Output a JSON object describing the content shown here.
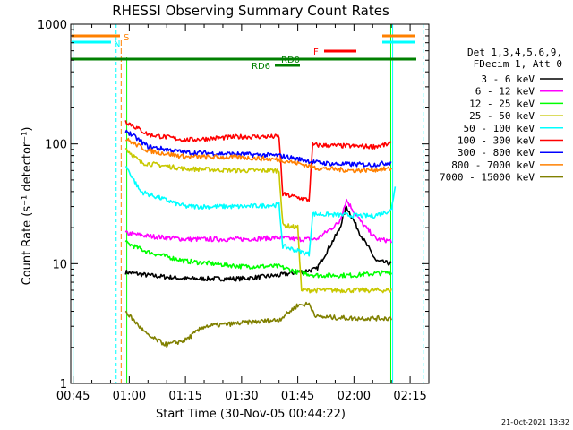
{
  "chart_data": {
    "type": "line",
    "title": "RHESSI Observing Summary Count Rates",
    "xlabel": "Start Time (30-Nov-05 00:44:22)",
    "ylabel": "Count Rate (s⁻¹ detector⁻¹)",
    "yscale": "log",
    "ylim": [
      1,
      1000
    ],
    "xlim": [
      "00:44:22",
      "02:20:00"
    ],
    "x_ticks": [
      "00:45",
      "01:00",
      "01:15",
      "01:30",
      "01:45",
      "02:00",
      "02:15"
    ],
    "y_ticks": [
      "1",
      "10",
      "100",
      "1000"
    ],
    "grid": false,
    "legend_position": "right",
    "legend_header": [
      "Det 1,3,4,5,6,9,",
      "FDecim 1, Att 0"
    ],
    "series": [
      {
        "name": "3 - 6 keV",
        "color": "#000000",
        "points": [
          [
            "00:59",
            8.5
          ],
          [
            "01:05",
            8.0
          ],
          [
            "01:15",
            7.5
          ],
          [
            "01:30",
            7.5
          ],
          [
            "01:40",
            8.0
          ],
          [
            "01:45",
            8.5
          ],
          [
            "01:50",
            9.0
          ],
          [
            "01:56",
            19.0
          ],
          [
            "01:58",
            30.0
          ],
          [
            "02:02",
            17.0
          ],
          [
            "02:06",
            10.5
          ],
          [
            "02:10",
            10.0
          ]
        ]
      },
      {
        "name": "6 - 12 keV",
        "color": "#ff00ff",
        "points": [
          [
            "00:59",
            18.0
          ],
          [
            "01:05",
            17.0
          ],
          [
            "01:15",
            16.0
          ],
          [
            "01:30",
            16.0
          ],
          [
            "01:40",
            16.5
          ],
          [
            "01:45",
            16.0
          ],
          [
            "01:50",
            16.0
          ],
          [
            "01:56",
            22.0
          ],
          [
            "01:58",
            34.0
          ],
          [
            "02:02",
            22.0
          ],
          [
            "02:06",
            16.0
          ],
          [
            "02:10",
            15.5
          ]
        ]
      },
      {
        "name": "12 - 25 keV",
        "color": "#00ff00",
        "points": [
          [
            "00:59",
            15.0
          ],
          [
            "01:05",
            12.5
          ],
          [
            "01:15",
            10.5
          ],
          [
            "01:30",
            9.5
          ],
          [
            "01:40",
            9.5
          ],
          [
            "01:45",
            8.5
          ],
          [
            "01:50",
            8.0
          ],
          [
            "02:00",
            8.0
          ],
          [
            "02:10",
            8.5
          ]
        ]
      },
      {
        "name": "25 - 50 keV",
        "color": "#c8c800",
        "points": [
          [
            "00:59",
            92.0
          ],
          [
            "01:03",
            70.0
          ],
          [
            "01:15",
            62.0
          ],
          [
            "01:30",
            60.0
          ],
          [
            "01:40",
            60.0
          ],
          [
            "01:41",
            21.0
          ],
          [
            "01:45",
            20.0
          ],
          [
            "01:46",
            6.0
          ],
          [
            "02:10",
            6.0
          ]
        ]
      },
      {
        "name": "50 - 100 keV",
        "color": "#00ffff",
        "points": [
          [
            "00:59",
            66.0
          ],
          [
            "01:03",
            40.0
          ],
          [
            "01:15",
            30.0
          ],
          [
            "01:30",
            30.0
          ],
          [
            "01:40",
            31.0
          ],
          [
            "01:41",
            14.0
          ],
          [
            "01:48",
            12.0
          ],
          [
            "01:49",
            26.0
          ],
          [
            "02:05",
            25.0
          ],
          [
            "02:10",
            28.0
          ],
          [
            "02:11",
            45.0
          ]
        ]
      },
      {
        "name": "100 - 300 keV",
        "color": "#ff0000",
        "points": [
          [
            "00:59",
            155.0
          ],
          [
            "01:05",
            120.0
          ],
          [
            "01:15",
            108.0
          ],
          [
            "01:30",
            115.0
          ],
          [
            "01:40",
            115.0
          ],
          [
            "01:41",
            38.0
          ],
          [
            "01:48",
            34.0
          ],
          [
            "01:49",
            98.0
          ],
          [
            "02:05",
            95.0
          ],
          [
            "02:10",
            100.0
          ]
        ]
      },
      {
        "name": "300 - 800 keV",
        "color": "#0000ff",
        "points": [
          [
            "00:59",
            130.0
          ],
          [
            "01:05",
            95.0
          ],
          [
            "01:15",
            85.0
          ],
          [
            "01:30",
            82.0
          ],
          [
            "01:40",
            80.0
          ],
          [
            "01:45",
            75.0
          ],
          [
            "01:50",
            70.0
          ],
          [
            "01:55",
            68.0
          ],
          [
            "02:05",
            67.0
          ],
          [
            "02:10",
            70.0
          ]
        ]
      },
      {
        "name": "800 - 7000 keV",
        "color": "#ff8000",
        "points": [
          [
            "00:59",
            110.0
          ],
          [
            "01:05",
            88.0
          ],
          [
            "01:15",
            78.0
          ],
          [
            "01:30",
            77.0
          ],
          [
            "01:40",
            74.0
          ],
          [
            "01:45",
            69.0
          ],
          [
            "01:50",
            63.0
          ],
          [
            "02:00",
            60.0
          ],
          [
            "02:10",
            62.0
          ]
        ]
      },
      {
        "name": "7000 - 15000 keV",
        "color": "#808000",
        "points": [
          [
            "00:59",
            4.0
          ],
          [
            "01:05",
            2.5
          ],
          [
            "01:10",
            2.1
          ],
          [
            "01:15",
            2.3
          ],
          [
            "01:20",
            3.0
          ],
          [
            "01:30",
            3.2
          ],
          [
            "01:40",
            3.4
          ],
          [
            "01:45",
            4.5
          ],
          [
            "01:48",
            4.6
          ],
          [
            "01:50",
            3.6
          ],
          [
            "02:00",
            3.5
          ],
          [
            "02:10",
            3.5
          ]
        ]
      }
    ],
    "annotations": {
      "S": {
        "label": "S",
        "color": "#ff8000"
      },
      "N": {
        "label": "N",
        "color": "#00ffff"
      },
      "F": {
        "label": "F",
        "color": "#ff0000"
      },
      "RD0": {
        "label": "RD0",
        "color": "#008000"
      },
      "RD6": {
        "label": "RD6",
        "color": "#008000"
      }
    },
    "footer_date": "21-Oct-2021 13:32"
  }
}
